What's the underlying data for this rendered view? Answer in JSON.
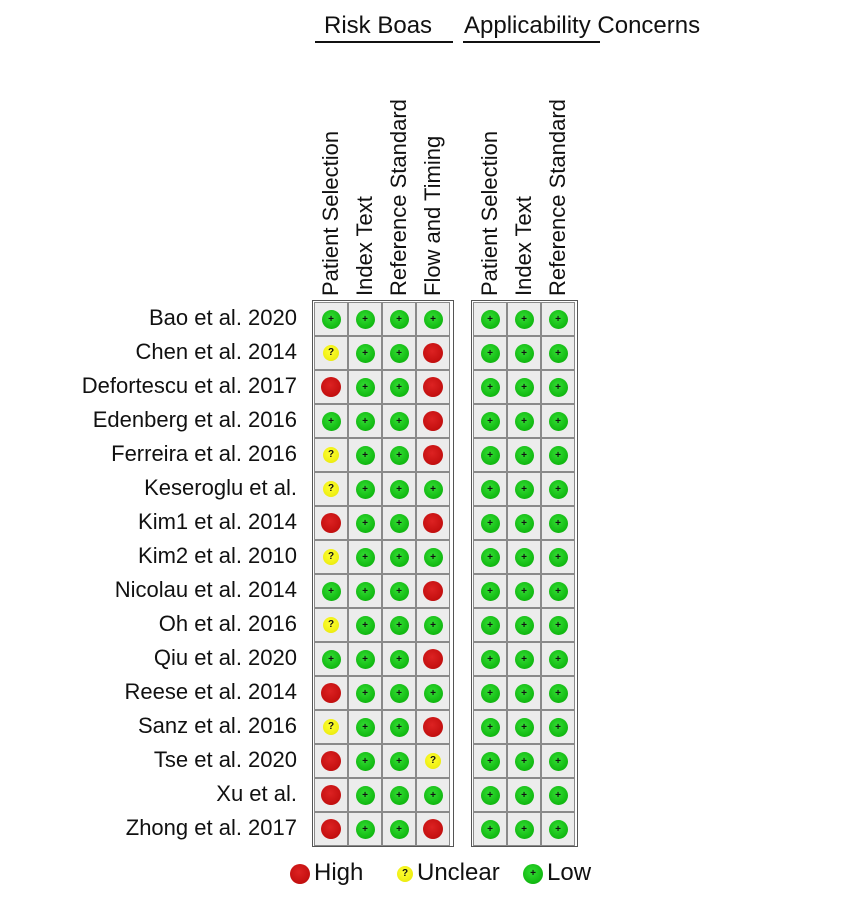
{
  "header": {
    "risk_of_bias": "Risk Boas",
    "applicability": "Applicability Concerns"
  },
  "bias_columns": [
    "Patient Selection",
    "Index Text",
    "Reference Standard",
    "Flow and Timing"
  ],
  "applicability_columns": [
    "Patient Selection",
    "Index Text",
    "Reference Standard"
  ],
  "studies": [
    {
      "name": "Bao et al. 2020",
      "bias": [
        "low",
        "low",
        "low",
        "low"
      ],
      "applicability": [
        "low",
        "low",
        "low"
      ]
    },
    {
      "name": "Chen et al. 2014",
      "bias": [
        "unclear",
        "low",
        "low",
        "high"
      ],
      "applicability": [
        "low",
        "low",
        "low"
      ]
    },
    {
      "name": "Defortescu et al. 2017",
      "bias": [
        "high",
        "low",
        "low",
        "high"
      ],
      "applicability": [
        "low",
        "low",
        "low"
      ]
    },
    {
      "name": "Edenberg et al. 2016",
      "bias": [
        "low",
        "low",
        "low",
        "high"
      ],
      "applicability": [
        "low",
        "low",
        "low"
      ]
    },
    {
      "name": "Ferreira et al. 2016",
      "bias": [
        "unclear",
        "low",
        "low",
        "high"
      ],
      "applicability": [
        "low",
        "low",
        "low"
      ]
    },
    {
      "name": "Keseroglu et al.",
      "bias": [
        "unclear",
        "low",
        "low",
        "low"
      ],
      "applicability": [
        "low",
        "low",
        "low"
      ]
    },
    {
      "name": "Kim1 et al. 2014",
      "bias": [
        "high",
        "low",
        "low",
        "high"
      ],
      "applicability": [
        "low",
        "low",
        "low"
      ]
    },
    {
      "name": "Kim2 et al. 2010",
      "bias": [
        "unclear",
        "low",
        "low",
        "low"
      ],
      "applicability": [
        "low",
        "low",
        "low"
      ]
    },
    {
      "name": "Nicolau et al. 2014",
      "bias": [
        "low",
        "low",
        "low",
        "high"
      ],
      "applicability": [
        "low",
        "low",
        "low"
      ]
    },
    {
      "name": "Oh et al. 2016",
      "bias": [
        "unclear",
        "low",
        "low",
        "low"
      ],
      "applicability": [
        "low",
        "low",
        "low"
      ]
    },
    {
      "name": "Qiu  et al. 2020",
      "bias": [
        "low",
        "low",
        "low",
        "high"
      ],
      "applicability": [
        "low",
        "low",
        "low"
      ]
    },
    {
      "name": "Reese et al. 2014",
      "bias": [
        "high",
        "low",
        "low",
        "low"
      ],
      "applicability": [
        "low",
        "low",
        "low"
      ]
    },
    {
      "name": "Sanz et al. 2016",
      "bias": [
        "unclear",
        "low",
        "low",
        "high"
      ],
      "applicability": [
        "low",
        "low",
        "low"
      ]
    },
    {
      "name": "Tse et al. 2020",
      "bias": [
        "high",
        "low",
        "low",
        "unclear"
      ],
      "applicability": [
        "low",
        "low",
        "low"
      ]
    },
    {
      "name": "Xu et al.",
      "bias": [
        "high",
        "low",
        "low",
        "low"
      ],
      "applicability": [
        "low",
        "low",
        "low"
      ]
    },
    {
      "name": "Zhong et al. 2017",
      "bias": [
        "high",
        "low",
        "low",
        "high"
      ],
      "applicability": [
        "low",
        "low",
        "low"
      ]
    }
  ],
  "ratings": {
    "low": {
      "symbol": "+",
      "color": "#11b811"
    },
    "high": {
      "symbol": "",
      "color": "#c30f0f"
    },
    "unclear": {
      "symbol": "?",
      "color": "#eded11"
    }
  },
  "legend": [
    {
      "key": "high",
      "label": "High"
    },
    {
      "key": "unclear",
      "label": "Unclear"
    },
    {
      "key": "low",
      "label": "Low"
    }
  ]
}
